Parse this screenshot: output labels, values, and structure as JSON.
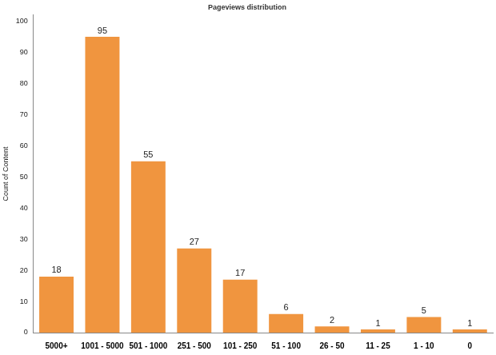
{
  "chart_data": {
    "type": "bar",
    "title": "Pageviews distribution",
    "y_label": "Count of Content",
    "categories": [
      "5000+",
      "1001 - 5000",
      "501 - 1000",
      "251 - 500",
      "101 - 250",
      "51 - 100",
      "26 - 50",
      "11 - 25",
      "1 - 10",
      "0"
    ],
    "values": [
      18,
      95,
      55,
      27,
      17,
      6,
      2,
      1,
      5,
      1
    ],
    "color": "#f0953f",
    "ylim": [
      0,
      102
    ],
    "yticks": [
      0,
      10,
      20,
      30,
      40,
      50,
      60,
      70,
      80,
      90,
      100
    ],
    "grid": false,
    "data_labels": true
  }
}
